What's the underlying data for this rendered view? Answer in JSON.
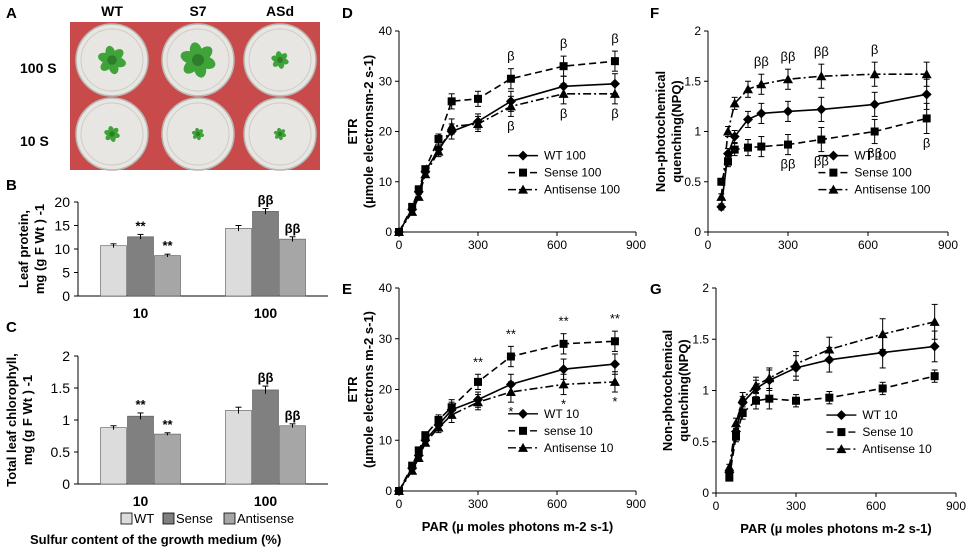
{
  "figure": {
    "panel_letters": [
      "A",
      "B",
      "C",
      "D",
      "E",
      "F",
      "G"
    ],
    "photo": {
      "col_labels": [
        "WT",
        "S7",
        "ASd"
      ],
      "row_labels": [
        "100 S",
        "10  S"
      ],
      "colors": {
        "background": "#c84a4a",
        "plate": "#e8e6e2",
        "plant": "#3fa33a"
      }
    },
    "bar_legend": [
      "WT",
      "Sense",
      "Antisense"
    ],
    "bar_common_xlabel": "Sulfur content of the growth medium (%)",
    "colors": {
      "wt": "#dcdcdc",
      "sense": "#808080",
      "antisense": "#a6a6a6",
      "line": "#000000"
    }
  },
  "chart_data": [
    {
      "id": "B",
      "type": "bar",
      "ylabel": "Leaf protein, mg (g F Wt ) -1",
      "categories": [
        "10",
        "100"
      ],
      "ylim": [
        0,
        20
      ],
      "yticks": [
        "0",
        "5",
        "10",
        "15",
        "20"
      ],
      "series": [
        {
          "name": "WT",
          "values": [
            10.7,
            14.4
          ],
          "errors": [
            0.4,
            0.6
          ],
          "annotations": [
            "",
            ""
          ]
        },
        {
          "name": "Sense",
          "values": [
            12.6,
            18.0
          ],
          "errors": [
            0.5,
            0.6
          ],
          "annotations": [
            "**",
            "ββ"
          ]
        },
        {
          "name": "Antisense",
          "values": [
            8.6,
            12.1
          ],
          "errors": [
            0.3,
            0.5
          ],
          "annotations": [
            "**",
            "ββ"
          ]
        }
      ]
    },
    {
      "id": "C",
      "type": "bar",
      "ylabel": "Total  leaf chlorophyll, mg (g F Wt ) -1",
      "categories": [
        "10",
        "100"
      ],
      "ylim": [
        0,
        2
      ],
      "yticks": [
        "0",
        "0.5",
        "1",
        "1.5",
        "2"
      ],
      "series": [
        {
          "name": "WT",
          "values": [
            0.88,
            1.15
          ],
          "errors": [
            0.03,
            0.05
          ],
          "annotations": [
            "",
            ""
          ]
        },
        {
          "name": "Sense",
          "values": [
            1.06,
            1.47
          ],
          "errors": [
            0.05,
            0.06
          ],
          "annotations": [
            "**",
            "ββ"
          ]
        },
        {
          "name": "Antisense",
          "values": [
            0.78,
            0.91
          ],
          "errors": [
            0.02,
            0.03
          ],
          "annotations": [
            "**",
            "ββ"
          ]
        }
      ]
    },
    {
      "id": "D",
      "type": "line",
      "ylabel": "ETR (µmole electronsm-2 s-1)",
      "xlabel": "",
      "xlim": [
        0,
        900
      ],
      "ylim": [
        0,
        40
      ],
      "xticks": [
        "0",
        "300",
        "600",
        "900"
      ],
      "yticks": [
        "0",
        "10",
        "20",
        "30",
        "40"
      ],
      "x": [
        0,
        50,
        75,
        100,
        150,
        200,
        300,
        425,
        625,
        820
      ],
      "series": [
        {
          "name": "WT 100",
          "style": "solid",
          "marker": "diamond",
          "values": [
            0,
            4.5,
            8.0,
            12.0,
            16.5,
            20.0,
            22.0,
            26.0,
            29.0,
            29.5
          ],
          "errors": [
            0,
            0.4,
            0.5,
            0.6,
            1.0,
            1.5,
            1.5,
            2.0,
            2.0,
            2.0
          ]
        },
        {
          "name": "Sense 100",
          "style": "dashed",
          "marker": "square",
          "values": [
            0,
            5.0,
            8.5,
            12.5,
            18.5,
            26.0,
            26.5,
            30.5,
            33.0,
            34.0
          ],
          "errors": [
            0,
            0.4,
            0.5,
            0.6,
            1.0,
            1.5,
            1.5,
            2.0,
            2.0,
            2.0
          ]
        },
        {
          "name": "Antisense 100",
          "style": "dashdot",
          "marker": "triangle",
          "values": [
            0,
            4.0,
            7.0,
            11.5,
            16.0,
            21.0,
            21.5,
            25.0,
            27.5,
            27.5
          ],
          "errors": [
            0,
            0.4,
            0.5,
            0.6,
            1.0,
            1.5,
            1.5,
            2.0,
            2.0,
            2.0
          ]
        }
      ],
      "annotations_above": [
        {
          "x": 425,
          "text": "β"
        },
        {
          "x": 625,
          "text": "β"
        },
        {
          "x": 820,
          "text": "β"
        }
      ],
      "annotations_below": [
        {
          "x": 425,
          "text": "β"
        },
        {
          "x": 625,
          "text": "β"
        },
        {
          "x": 820,
          "text": "β"
        }
      ],
      "legend_position": "bottom-right"
    },
    {
      "id": "E",
      "type": "line",
      "ylabel": "ETR (µmole electrons m-2 s-1)",
      "xlabel": "PAR (µ moles photons m-2 s-1)",
      "xlim": [
        0,
        900
      ],
      "ylim": [
        0,
        40
      ],
      "xticks": [
        "0",
        "300",
        "600",
        "900"
      ],
      "yticks": [
        "0",
        "10",
        "20",
        "30",
        "40"
      ],
      "x": [
        0,
        50,
        75,
        100,
        150,
        200,
        300,
        425,
        625,
        820
      ],
      "series": [
        {
          "name": "WT 10",
          "style": "solid",
          "marker": "diamond",
          "values": [
            0,
            4.5,
            7.0,
            10.0,
            13.0,
            16.0,
            18.0,
            21.0,
            24.0,
            25.0
          ],
          "errors": [
            0,
            0.4,
            0.5,
            0.6,
            1.0,
            1.5,
            1.5,
            2.0,
            2.0,
            2.0
          ]
        },
        {
          "name": "sense 10",
          "style": "dashed",
          "marker": "square",
          "values": [
            0,
            5.0,
            8.0,
            11.0,
            14.0,
            16.5,
            21.5,
            26.5,
            29.0,
            29.5
          ],
          "errors": [
            0,
            0.4,
            0.5,
            0.6,
            1.0,
            1.5,
            1.5,
            2.0,
            2.0,
            2.0
          ]
        },
        {
          "name": "Antisense 10",
          "style": "dashdot",
          "marker": "triangle",
          "values": [
            0,
            4.0,
            6.5,
            9.5,
            12.5,
            15.0,
            17.5,
            19.5,
            21.0,
            21.5
          ],
          "errors": [
            0,
            0.4,
            0.5,
            0.6,
            1.0,
            1.5,
            1.5,
            2.0,
            2.0,
            2.0
          ]
        }
      ],
      "annotations_above": [
        {
          "x": 300,
          "text": "**"
        },
        {
          "x": 425,
          "text": "**"
        },
        {
          "x": 625,
          "text": "**"
        },
        {
          "x": 820,
          "text": "**"
        }
      ],
      "annotations_below": [
        {
          "x": 425,
          "text": "*"
        },
        {
          "x": 625,
          "text": "*"
        },
        {
          "x": 820,
          "text": "*"
        }
      ],
      "legend_position": "bottom-right"
    },
    {
      "id": "F",
      "type": "line",
      "ylabel": "Non-photochemical quenching(NPQ)",
      "xlabel": "",
      "xlim": [
        0,
        900
      ],
      "ylim": [
        0,
        2
      ],
      "xticks": [
        "0",
        "300",
        "600",
        "900"
      ],
      "yticks": [
        "0",
        "0.5",
        "1",
        "1.5",
        "2"
      ],
      "x": [
        50,
        75,
        100,
        150,
        200,
        300,
        425,
        625,
        820
      ],
      "series": [
        {
          "name": "WT 100",
          "style": "solid",
          "marker": "diamond",
          "values": [
            0.25,
            0.78,
            0.95,
            1.12,
            1.18,
            1.2,
            1.22,
            1.27,
            1.37
          ],
          "errors": [
            0.03,
            0.05,
            0.06,
            0.08,
            0.1,
            0.1,
            0.12,
            0.12,
            0.15
          ]
        },
        {
          "name": "Sense 100",
          "style": "dashed",
          "marker": "square",
          "values": [
            0.5,
            0.7,
            0.82,
            0.84,
            0.85,
            0.87,
            0.92,
            1.0,
            1.13
          ],
          "errors": [
            0.03,
            0.05,
            0.06,
            0.08,
            0.1,
            0.1,
            0.12,
            0.12,
            0.15
          ]
        },
        {
          "name": "Antisense 100",
          "style": "dashdot",
          "marker": "triangle",
          "values": [
            0.35,
            1.0,
            1.28,
            1.42,
            1.47,
            1.52,
            1.55,
            1.57,
            1.57
          ],
          "errors": [
            0.03,
            0.05,
            0.06,
            0.08,
            0.1,
            0.1,
            0.12,
            0.12,
            0.12
          ]
        }
      ],
      "annotations_above": [
        {
          "x": 200,
          "text": "ββ"
        },
        {
          "x": 300,
          "text": "ββ"
        },
        {
          "x": 425,
          "text": "ββ"
        },
        {
          "x": 625,
          "text": "β"
        }
      ],
      "annotations_below": [
        {
          "x": 300,
          "text": "ββ"
        },
        {
          "x": 425,
          "text": "ββ"
        },
        {
          "x": 625,
          "text": "ββ"
        },
        {
          "x": 820,
          "text": "β"
        }
      ],
      "legend_position": "bottom-right"
    },
    {
      "id": "G",
      "type": "line",
      "ylabel": "Non-photochemical quenching(NPQ)",
      "xlabel": "PAR (µ moles photons m-2 s-1)",
      "xlim": [
        0,
        900
      ],
      "ylim": [
        0,
        2
      ],
      "xticks": [
        "0",
        "300",
        "600",
        "900"
      ],
      "yticks": [
        "0",
        "0.5",
        "1",
        "1.5",
        "2"
      ],
      "x": [
        50,
        75,
        100,
        150,
        200,
        300,
        425,
        625,
        820
      ],
      "series": [
        {
          "name": "WT 10",
          "style": "solid",
          "marker": "diamond",
          "values": [
            0.2,
            0.6,
            0.88,
            1.02,
            1.1,
            1.22,
            1.3,
            1.37,
            1.43
          ],
          "errors": [
            0.03,
            0.05,
            0.06,
            0.08,
            0.1,
            0.12,
            0.12,
            0.15,
            0.15
          ]
        },
        {
          "name": "Sense 10",
          "style": "dashed",
          "marker": "square",
          "values": [
            0.15,
            0.55,
            0.78,
            0.9,
            0.92,
            0.9,
            0.93,
            1.02,
            1.14
          ],
          "errors": [
            0.03,
            0.05,
            0.06,
            0.08,
            0.1,
            0.06,
            0.06,
            0.06,
            0.06
          ]
        },
        {
          "name": "Antisense 10",
          "style": "dashdot",
          "marker": "triangle",
          "values": [
            0.25,
            0.68,
            0.92,
            1.05,
            1.12,
            1.26,
            1.4,
            1.55,
            1.67
          ],
          "errors": [
            0.03,
            0.05,
            0.06,
            0.08,
            0.1,
            0.12,
            0.12,
            0.15,
            0.17
          ]
        }
      ],
      "annotations_above": [],
      "annotations_below": [],
      "legend_position": "bottom-right"
    }
  ]
}
